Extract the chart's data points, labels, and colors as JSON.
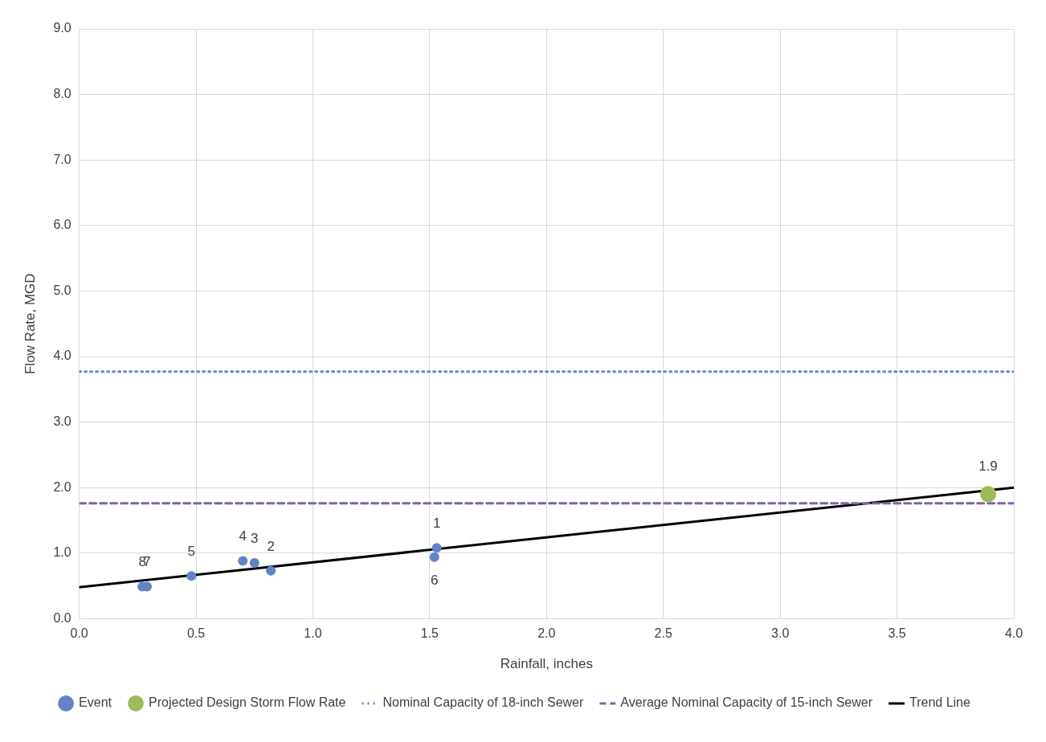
{
  "chart_data": {
    "type": "scatter",
    "xlabel": "Rainfall, inches",
    "ylabel": "Flow Rate, MGD",
    "xlim": [
      0,
      4
    ],
    "xticks": [
      {
        "value": 0,
        "label": "0.0"
      },
      0.5,
      {
        "value": 1,
        "label": "1.0"
      },
      1.5,
      {
        "value": 2,
        "label": "2.0"
      },
      2.5,
      {
        "value": 3,
        "label": "3.0"
      },
      3.5,
      {
        "value": 4,
        "label": "4.0"
      }
    ],
    "ylim": [
      0,
      9
    ],
    "yticks": [
      {
        "value": 0,
        "label": "0.0"
      },
      {
        "value": 1,
        "label": "1.0"
      },
      {
        "value": 2,
        "label": "2.0"
      },
      {
        "value": 3,
        "label": "3.0"
      },
      {
        "value": 4,
        "label": "4.0"
      },
      {
        "value": 5,
        "label": "5.0"
      },
      {
        "value": 6,
        "label": "6.0"
      },
      {
        "value": 7,
        "label": "7.0"
      },
      {
        "value": 8,
        "label": "8.0"
      },
      {
        "value": 9,
        "label": "9.0"
      }
    ],
    "grid": true,
    "legend": "bottom",
    "marker": "circle",
    "series": [
      {
        "name": "Event",
        "type": "scatter",
        "color": "#6283c6",
        "x": [
          1.53,
          0.82,
          0.75,
          0.7,
          0.48,
          1.52,
          0.29,
          0.27
        ],
        "values": [
          1.08,
          0.73,
          0.85,
          0.88,
          0.65,
          0.94,
          0.49,
          0.49
        ]
      },
      {
        "name": "Projected Design Storm Flow Rate",
        "type": "scatter",
        "color": "#9bbb59",
        "x": [
          3.89
        ],
        "values": [
          1.9
        ],
        "value_labels": [
          "1.9"
        ]
      },
      {
        "name": "Nominal Capacity of 18-inch Sewer",
        "type": "line",
        "color": "#5a8ad6",
        "marker": "none",
        "line_style": "dotted",
        "x": [
          0,
          4
        ],
        "values": [
          3.77,
          3.77
        ]
      },
      {
        "name": "Average Nominal Capacity of 15-inch Sewer",
        "type": "line",
        "color": "#8064a2",
        "marker": "none",
        "line_style": "dashed",
        "x": [
          0,
          4
        ],
        "values": [
          1.76,
          1.76
        ]
      },
      {
        "name": "Trend Line",
        "type": "line",
        "color": "#000000",
        "marker": "none",
        "line_style": "solid",
        "x": [
          0,
          4
        ],
        "values": [
          0.48,
          2.0
        ]
      }
    ],
    "annotations": [
      {
        "text": "1",
        "x": 1.53,
        "y": 1.08
      },
      {
        "text": "2",
        "x": 0.82,
        "y": 0.73
      },
      {
        "text": "3",
        "x": 0.75,
        "y": 0.85
      },
      {
        "text": "4",
        "x": 0.7,
        "y": 0.88
      },
      {
        "text": "5",
        "x": 0.48,
        "y": 0.65
      },
      {
        "text": "6",
        "x": 1.52,
        "y": 0.94
      },
      {
        "text": "7",
        "x": 0.29,
        "y": 0.49
      },
      {
        "text": "8",
        "x": 0.27,
        "y": 0.49
      }
    ]
  }
}
